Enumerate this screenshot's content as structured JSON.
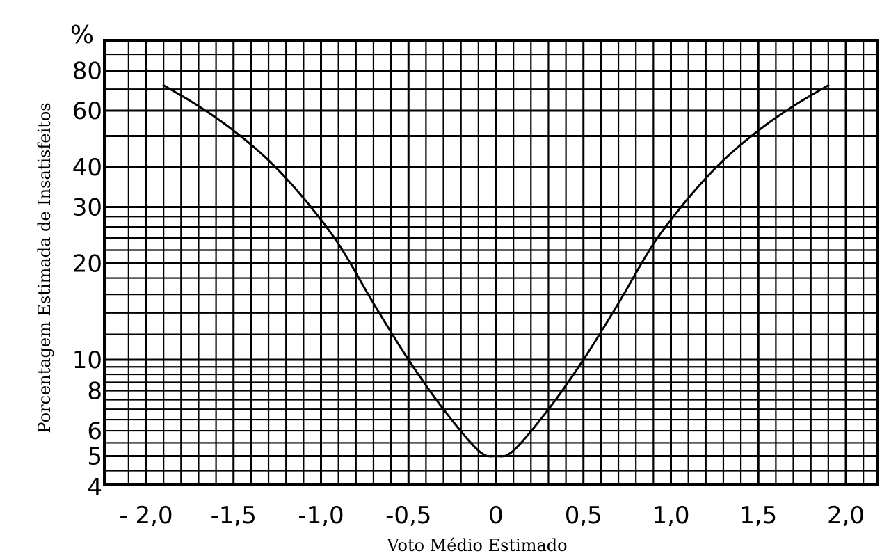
{
  "chart_data": {
    "type": "line",
    "xlabel": "Voto Médio Estimado",
    "ylabel": "Porcentagem Estimada de Insatisfeitos",
    "y_unit_label": "%",
    "y_scale": "log",
    "xlim": [
      -2.0,
      2.0
    ],
    "ylim": [
      4,
      100
    ],
    "x_ticks": [
      -2.0,
      -1.5,
      -1.0,
      -0.5,
      0,
      0.5,
      1.0,
      1.5,
      2.0
    ],
    "x_tick_labels": [
      "- 2,0",
      "-1,5",
      "-1,0",
      "-0,5",
      "0",
      "0,5",
      "1,0",
      "1,5",
      "2,0"
    ],
    "y_ticks": [
      4,
      5,
      6,
      8,
      10,
      20,
      30,
      40,
      60,
      80
    ],
    "y_tick_labels": [
      "4",
      "5",
      "6",
      "8",
      "10",
      "20",
      "30",
      "40",
      "60",
      "80"
    ],
    "grid": true,
    "series": [
      {
        "x": [
          -1.9,
          -1.7,
          -1.5,
          -1.3,
          -1.1,
          -0.9,
          -0.7,
          -0.5,
          -0.3,
          -0.1,
          0.0,
          0.1,
          0.3,
          0.5,
          0.7,
          0.9,
          1.1,
          1.3,
          1.5,
          1.7,
          1.9
        ],
        "values": [
          72,
          62,
          52,
          42,
          32,
          23,
          15,
          10,
          7,
          5.2,
          5,
          5.2,
          7,
          10,
          15,
          23,
          32,
          42,
          52,
          62,
          72
        ]
      }
    ],
    "line_color": "#000000",
    "grid_color": "#000000"
  }
}
